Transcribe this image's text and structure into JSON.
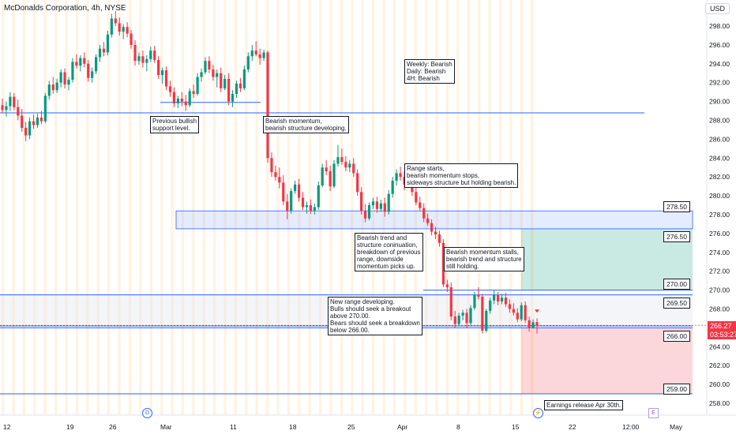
{
  "header": {
    "title": "McDonalds Corporation, 4h, NYSE",
    "currency": "USD"
  },
  "last_price": {
    "value": "266.27",
    "countdown": "03:53:27",
    "color": "#f23645"
  },
  "colors": {
    "up": "#089981",
    "down": "#f23645",
    "level_line": "#2962ff",
    "session_band": "#fff3e0"
  },
  "chart_data": {
    "type": "candlestick",
    "y_axis": {
      "range": [
        256.8,
        300.2
      ],
      "ticks": [
        258,
        260,
        262,
        264,
        266,
        268,
        270,
        272,
        274,
        276,
        278,
        280,
        282,
        284,
        286,
        288,
        290,
        292,
        294,
        296,
        298
      ],
      "tick_labels": [
        "258.00",
        "260.00",
        "262.00",
        "264.00",
        "266.00",
        "268.00",
        "270.00",
        "272.00",
        "274.00",
        "276.00",
        "278.00",
        "280.00",
        "282.00",
        "284.00",
        "286.00",
        "288.00",
        "290.00",
        "292.00",
        "294.00",
        "296.00",
        "298.00"
      ]
    },
    "x_axis": {
      "tick_labels": [
        "12",
        "19",
        "26",
        "Mar",
        "11",
        "18",
        "25",
        "Apr",
        "8",
        "15",
        "22",
        "12:00",
        "May"
      ]
    },
    "candles": [
      {
        "o": 289.6,
        "h": 290.3,
        "l": 288.8,
        "c": 289.1
      },
      {
        "o": 289.1,
        "h": 290.0,
        "l": 288.4,
        "c": 289.5
      },
      {
        "o": 289.5,
        "h": 291.0,
        "l": 289.0,
        "c": 290.5
      },
      {
        "o": 290.5,
        "h": 290.9,
        "l": 289.1,
        "c": 289.4
      },
      {
        "o": 289.4,
        "h": 290.2,
        "l": 288.0,
        "c": 288.5
      },
      {
        "o": 288.5,
        "h": 289.2,
        "l": 286.8,
        "c": 287.2
      },
      {
        "o": 287.2,
        "h": 287.8,
        "l": 285.8,
        "c": 286.4
      },
      {
        "o": 286.4,
        "h": 288.3,
        "l": 286.0,
        "c": 287.9
      },
      {
        "o": 287.9,
        "h": 288.6,
        "l": 287.1,
        "c": 287.5
      },
      {
        "o": 287.5,
        "h": 288.7,
        "l": 287.2,
        "c": 288.3
      },
      {
        "o": 288.3,
        "h": 289.0,
        "l": 287.6,
        "c": 287.9
      },
      {
        "o": 287.9,
        "h": 290.9,
        "l": 287.7,
        "c": 290.6
      },
      {
        "o": 290.6,
        "h": 292.2,
        "l": 290.2,
        "c": 291.8
      },
      {
        "o": 291.8,
        "h": 292.6,
        "l": 290.8,
        "c": 291.2
      },
      {
        "o": 291.2,
        "h": 292.4,
        "l": 290.9,
        "c": 292.0
      },
      {
        "o": 292.0,
        "h": 293.4,
        "l": 291.5,
        "c": 293.1
      },
      {
        "o": 293.1,
        "h": 293.5,
        "l": 291.4,
        "c": 291.8
      },
      {
        "o": 291.8,
        "h": 292.6,
        "l": 291.2,
        "c": 292.3
      },
      {
        "o": 292.3,
        "h": 294.6,
        "l": 292.0,
        "c": 294.2
      },
      {
        "o": 294.2,
        "h": 295.0,
        "l": 293.5,
        "c": 293.8
      },
      {
        "o": 293.8,
        "h": 294.9,
        "l": 293.2,
        "c": 294.6
      },
      {
        "o": 294.6,
        "h": 295.2,
        "l": 293.6,
        "c": 294.0
      },
      {
        "o": 294.0,
        "h": 294.4,
        "l": 292.1,
        "c": 292.5
      },
      {
        "o": 292.5,
        "h": 293.6,
        "l": 292.0,
        "c": 293.2
      },
      {
        "o": 293.2,
        "h": 295.0,
        "l": 292.9,
        "c": 294.7
      },
      {
        "o": 294.7,
        "h": 296.0,
        "l": 294.2,
        "c": 295.6
      },
      {
        "o": 295.6,
        "h": 296.3,
        "l": 294.8,
        "c": 295.2
      },
      {
        "o": 295.2,
        "h": 297.5,
        "l": 294.9,
        "c": 297.1
      },
      {
        "o": 297.1,
        "h": 299.3,
        "l": 296.8,
        "c": 298.8
      },
      {
        "o": 298.8,
        "h": 299.6,
        "l": 298.0,
        "c": 298.3
      },
      {
        "o": 298.3,
        "h": 298.9,
        "l": 297.0,
        "c": 297.4
      },
      {
        "o": 297.4,
        "h": 298.2,
        "l": 296.6,
        "c": 297.9
      },
      {
        "o": 297.9,
        "h": 298.4,
        "l": 296.8,
        "c": 297.2
      },
      {
        "o": 297.2,
        "h": 297.6,
        "l": 295.6,
        "c": 296.0
      },
      {
        "o": 296.0,
        "h": 296.5,
        "l": 293.8,
        "c": 294.3
      },
      {
        "o": 294.3,
        "h": 295.2,
        "l": 293.9,
        "c": 294.8
      },
      {
        "o": 294.8,
        "h": 295.4,
        "l": 293.6,
        "c": 294.1
      },
      {
        "o": 294.1,
        "h": 294.9,
        "l": 293.2,
        "c": 294.5
      },
      {
        "o": 294.5,
        "h": 295.8,
        "l": 294.2,
        "c": 295.4
      },
      {
        "o": 295.4,
        "h": 295.9,
        "l": 294.1,
        "c": 294.4
      },
      {
        "o": 294.4,
        "h": 294.8,
        "l": 292.4,
        "c": 292.8
      },
      {
        "o": 292.8,
        "h": 293.6,
        "l": 291.9,
        "c": 293.3
      },
      {
        "o": 293.3,
        "h": 293.7,
        "l": 291.2,
        "c": 291.6
      },
      {
        "o": 291.6,
        "h": 292.2,
        "l": 290.5,
        "c": 291.0
      },
      {
        "o": 291.0,
        "h": 291.5,
        "l": 289.4,
        "c": 289.8
      },
      {
        "o": 289.8,
        "h": 290.6,
        "l": 289.3,
        "c": 290.3
      },
      {
        "o": 290.3,
        "h": 291.0,
        "l": 289.5,
        "c": 290.0
      },
      {
        "o": 290.0,
        "h": 290.7,
        "l": 289.0,
        "c": 289.6
      },
      {
        "o": 289.6,
        "h": 291.4,
        "l": 289.4,
        "c": 291.1
      },
      {
        "o": 291.1,
        "h": 291.8,
        "l": 290.4,
        "c": 290.8
      },
      {
        "o": 290.8,
        "h": 293.0,
        "l": 290.6,
        "c": 292.6
      },
      {
        "o": 292.6,
        "h": 293.5,
        "l": 292.1,
        "c": 293.1
      },
      {
        "o": 293.1,
        "h": 294.7,
        "l": 292.9,
        "c": 294.3
      },
      {
        "o": 294.3,
        "h": 294.8,
        "l": 293.0,
        "c": 293.4
      },
      {
        "o": 293.4,
        "h": 293.9,
        "l": 292.2,
        "c": 292.6
      },
      {
        "o": 292.6,
        "h": 293.4,
        "l": 291.5,
        "c": 293.0
      },
      {
        "o": 293.0,
        "h": 293.6,
        "l": 291.0,
        "c": 291.4
      },
      {
        "o": 291.4,
        "h": 292.8,
        "l": 291.2,
        "c": 292.4
      },
      {
        "o": 292.4,
        "h": 293.0,
        "l": 289.6,
        "c": 290.0
      },
      {
        "o": 290.0,
        "h": 291.2,
        "l": 289.4,
        "c": 290.8
      },
      {
        "o": 290.8,
        "h": 292.2,
        "l": 290.4,
        "c": 291.9
      },
      {
        "o": 291.9,
        "h": 292.5,
        "l": 291.0,
        "c": 291.4
      },
      {
        "o": 291.4,
        "h": 293.8,
        "l": 291.2,
        "c": 293.4
      },
      {
        "o": 293.4,
        "h": 295.2,
        "l": 293.1,
        "c": 294.8
      },
      {
        "o": 294.8,
        "h": 296.0,
        "l": 294.3,
        "c": 295.4
      },
      {
        "o": 295.4,
        "h": 296.4,
        "l": 294.8,
        "c": 295.0
      },
      {
        "o": 295.0,
        "h": 295.6,
        "l": 293.9,
        "c": 294.6
      },
      {
        "o": 294.6,
        "h": 295.5,
        "l": 294.3,
        "c": 295.2
      },
      {
        "o": 295.2,
        "h": 295.4,
        "l": 283.5,
        "c": 284.0
      },
      {
        "o": 284.0,
        "h": 284.6,
        "l": 282.0,
        "c": 282.5
      },
      {
        "o": 282.5,
        "h": 283.2,
        "l": 281.6,
        "c": 282.0
      },
      {
        "o": 282.0,
        "h": 283.0,
        "l": 280.8,
        "c": 281.4
      },
      {
        "o": 281.4,
        "h": 282.2,
        "l": 279.0,
        "c": 279.4
      },
      {
        "o": 279.4,
        "h": 280.2,
        "l": 277.5,
        "c": 278.4
      },
      {
        "o": 278.4,
        "h": 280.8,
        "l": 278.1,
        "c": 280.5
      },
      {
        "o": 280.5,
        "h": 281.6,
        "l": 280.2,
        "c": 281.2
      },
      {
        "o": 281.2,
        "h": 281.8,
        "l": 279.4,
        "c": 279.8
      },
      {
        "o": 279.8,
        "h": 280.4,
        "l": 278.5,
        "c": 278.8
      },
      {
        "o": 278.8,
        "h": 279.4,
        "l": 278.1,
        "c": 279.0
      },
      {
        "o": 279.0,
        "h": 279.6,
        "l": 278.1,
        "c": 278.4
      },
      {
        "o": 278.4,
        "h": 279.2,
        "l": 278.0,
        "c": 278.8
      },
      {
        "o": 278.8,
        "h": 281.5,
        "l": 278.5,
        "c": 281.1
      },
      {
        "o": 281.1,
        "h": 283.4,
        "l": 280.9,
        "c": 283.0
      },
      {
        "o": 283.0,
        "h": 283.8,
        "l": 282.2,
        "c": 282.6
      },
      {
        "o": 282.6,
        "h": 283.2,
        "l": 280.5,
        "c": 281.0
      },
      {
        "o": 281.0,
        "h": 283.8,
        "l": 280.8,
        "c": 283.4
      },
      {
        "o": 283.4,
        "h": 285.4,
        "l": 283.1,
        "c": 284.1
      },
      {
        "o": 284.1,
        "h": 285.0,
        "l": 283.3,
        "c": 283.6
      },
      {
        "o": 283.6,
        "h": 284.2,
        "l": 282.6,
        "c": 283.0
      },
      {
        "o": 283.0,
        "h": 283.8,
        "l": 282.5,
        "c": 283.4
      },
      {
        "o": 283.4,
        "h": 284.0,
        "l": 282.0,
        "c": 282.4
      },
      {
        "o": 282.4,
        "h": 282.8,
        "l": 280.0,
        "c": 280.4
      },
      {
        "o": 280.4,
        "h": 280.9,
        "l": 278.0,
        "c": 278.4
      },
      {
        "o": 278.4,
        "h": 279.1,
        "l": 277.2,
        "c": 277.6
      },
      {
        "o": 277.6,
        "h": 279.3,
        "l": 277.4,
        "c": 279.0
      },
      {
        "o": 279.0,
        "h": 279.8,
        "l": 278.6,
        "c": 279.4
      },
      {
        "o": 279.4,
        "h": 279.9,
        "l": 278.2,
        "c": 278.6
      },
      {
        "o": 278.6,
        "h": 279.6,
        "l": 278.3,
        "c": 279.2
      },
      {
        "o": 279.2,
        "h": 279.8,
        "l": 277.8,
        "c": 278.3
      },
      {
        "o": 278.3,
        "h": 280.6,
        "l": 278.0,
        "c": 280.2
      },
      {
        "o": 280.2,
        "h": 282.0,
        "l": 279.8,
        "c": 281.6
      },
      {
        "o": 281.6,
        "h": 282.8,
        "l": 281.1,
        "c": 282.4
      },
      {
        "o": 282.4,
        "h": 283.1,
        "l": 281.6,
        "c": 282.0
      },
      {
        "o": 282.0,
        "h": 282.6,
        "l": 280.6,
        "c": 281.2
      },
      {
        "o": 281.2,
        "h": 281.9,
        "l": 280.8,
        "c": 281.6
      },
      {
        "o": 281.6,
        "h": 282.2,
        "l": 280.0,
        "c": 280.4
      },
      {
        "o": 280.4,
        "h": 280.9,
        "l": 279.0,
        "c": 279.3
      },
      {
        "o": 279.3,
        "h": 279.9,
        "l": 278.4,
        "c": 278.7
      },
      {
        "o": 278.7,
        "h": 279.2,
        "l": 277.2,
        "c": 277.6
      },
      {
        "o": 277.6,
        "h": 278.1,
        "l": 276.8,
        "c": 277.1
      },
      {
        "o": 277.1,
        "h": 277.5,
        "l": 275.8,
        "c": 276.2
      },
      {
        "o": 276.2,
        "h": 276.7,
        "l": 275.4,
        "c": 275.9
      },
      {
        "o": 275.9,
        "h": 276.3,
        "l": 274.6,
        "c": 275.0
      },
      {
        "o": 275.0,
        "h": 275.4,
        "l": 270.3,
        "c": 270.6
      },
      {
        "o": 270.6,
        "h": 271.1,
        "l": 269.8,
        "c": 270.3
      },
      {
        "o": 270.3,
        "h": 270.8,
        "l": 266.8,
        "c": 267.2
      },
      {
        "o": 267.2,
        "h": 267.8,
        "l": 266.0,
        "c": 266.4
      },
      {
        "o": 266.4,
        "h": 267.6,
        "l": 266.2,
        "c": 267.3
      },
      {
        "o": 267.3,
        "h": 267.9,
        "l": 266.8,
        "c": 267.6
      },
      {
        "o": 267.6,
        "h": 268.0,
        "l": 266.0,
        "c": 266.5
      },
      {
        "o": 266.5,
        "h": 268.4,
        "l": 266.3,
        "c": 268.1
      },
      {
        "o": 268.1,
        "h": 269.8,
        "l": 267.9,
        "c": 269.5
      },
      {
        "o": 269.5,
        "h": 270.3,
        "l": 269.0,
        "c": 269.3
      },
      {
        "o": 269.3,
        "h": 269.6,
        "l": 265.4,
        "c": 265.7
      },
      {
        "o": 265.7,
        "h": 268.0,
        "l": 265.5,
        "c": 267.8
      },
      {
        "o": 267.8,
        "h": 269.2,
        "l": 267.5,
        "c": 268.9
      },
      {
        "o": 268.9,
        "h": 270.0,
        "l": 268.5,
        "c": 269.5
      },
      {
        "o": 269.5,
        "h": 269.8,
        "l": 268.4,
        "c": 268.8
      },
      {
        "o": 268.8,
        "h": 269.6,
        "l": 268.5,
        "c": 269.2
      },
      {
        "o": 269.2,
        "h": 269.7,
        "l": 268.2,
        "c": 268.5
      },
      {
        "o": 268.5,
        "h": 269.0,
        "l": 267.6,
        "c": 268.0
      },
      {
        "o": 268.0,
        "h": 268.6,
        "l": 267.3,
        "c": 267.6
      },
      {
        "o": 267.6,
        "h": 268.1,
        "l": 266.6,
        "c": 266.9
      },
      {
        "o": 266.9,
        "h": 268.7,
        "l": 266.7,
        "c": 268.4
      },
      {
        "o": 268.4,
        "h": 268.8,
        "l": 266.5,
        "c": 266.8
      },
      {
        "o": 266.8,
        "h": 267.2,
        "l": 265.6,
        "c": 266.0
      },
      {
        "o": 266.0,
        "h": 266.9,
        "l": 265.9,
        "c": 266.6
      },
      {
        "o": 266.6,
        "h": 267.0,
        "l": 265.4,
        "c": 266.27
      }
    ]
  },
  "levels": [
    {
      "name": "prev-support",
      "label": ""
    },
    {
      "name": "level-278-50",
      "label": "278.50"
    },
    {
      "name": "level-276-50",
      "label": "276.50"
    },
    {
      "name": "level-270-00",
      "label": "270.00"
    },
    {
      "name": "level-269-50",
      "label": "269.50"
    },
    {
      "name": "level-266-00",
      "label": "266.00"
    },
    {
      "name": "level-259-00",
      "label": "259.00"
    }
  ],
  "annotations": {
    "prev_support": "Previous bullish\nsupport level.",
    "bearish_momentum": "Bearish momentum,\nbearish structure developing.",
    "bias": "Weekly: Bearish\nDaily: Bearish\n4H: Bearish",
    "range_starts": "Range starts,\nbearish momentum stops,\nsideways structure but holding bearish.",
    "bearish_trend": "Bearish trend and\nstructure coninuation,\nbreakdown of previous\nrange, downside\nmomentum picks up.",
    "momentum_stalls": "Bearish momentum stalls,\nbearish trend and structure\nstill holding.",
    "new_range": "New range developing.\nBulls should seek a breakout\nabove 270.00.\nBears should seek a breakdown\nbelow 266.00.",
    "earnings": "Earnings release Apr 30th."
  },
  "events": {
    "dividend": "D",
    "split": "⚡",
    "earnings": "E"
  }
}
